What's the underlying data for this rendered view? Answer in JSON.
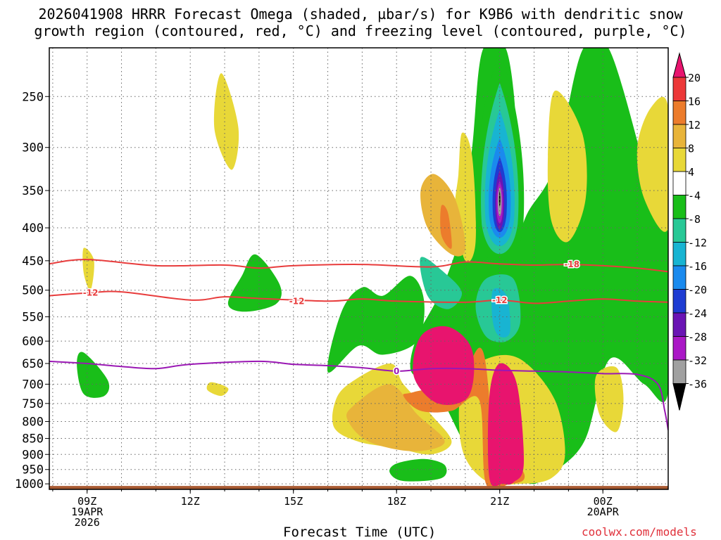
{
  "title_line1": "2026041908 HRRR Forecast Omega (shaded, µbar/s) for K9B6 with dendritic snow",
  "title_line2": "growth region (contoured, red, °C) and freezing level (contoured, purple, °C)",
  "xlabel": "Forecast Time (UTC)",
  "credit": "coolwx.com/models",
  "chart_data": {
    "type": "contour",
    "x_unit": "forecast hour (UTC)",
    "y_unit": "pressure (mb)",
    "xlim": [
      7.9,
      25.9
    ],
    "ylim": [
      1020,
      210
    ],
    "y_scale": "log",
    "grid": true,
    "y_ticks": [
      250,
      300,
      350,
      400,
      450,
      500,
      550,
      600,
      650,
      700,
      750,
      800,
      850,
      900,
      950,
      1000
    ],
    "x_ticks": [
      {
        "x": 9,
        "lines": [
          "09Z",
          "19APR",
          "2026"
        ]
      },
      {
        "x": 12,
        "lines": [
          "12Z"
        ]
      },
      {
        "x": 15,
        "lines": [
          "15Z"
        ]
      },
      {
        "x": 18,
        "lines": [
          "18Z"
        ]
      },
      {
        "x": 21,
        "lines": [
          "21Z"
        ]
      },
      {
        "x": 24,
        "lines": [
          "00Z",
          "20APR"
        ]
      }
    ],
    "colorbar": {
      "labels": [
        20,
        16,
        12,
        8,
        4,
        -4,
        -8,
        -12,
        -16,
        -20,
        -24,
        -28,
        -32,
        -36
      ],
      "colors": [
        "#e8146e",
        "#ec3838",
        "#ec7c2c",
        "#e8b43a",
        "#e8d838",
        "#ffffff",
        "#19be19",
        "#28c896",
        "#18b4d2",
        "#1a8aee",
        "#1e3cd2",
        "#6a14b4",
        "#aa18c6",
        "#a0a0a0",
        "#000000"
      ]
    },
    "ground_pressure": 1000,
    "contours": [
      {
        "label": "-18",
        "color": "#e83c3c",
        "x": [
          7.9,
          9,
          11,
          13,
          14,
          15,
          17,
          19,
          20,
          21,
          22,
          23,
          24,
          25,
          25.9
        ],
        "y": [
          455,
          448,
          458,
          457,
          462,
          458,
          456,
          460,
          452,
          455,
          457,
          456,
          458,
          462,
          468
        ]
      },
      {
        "label": "-12",
        "color": "#e83c3c",
        "x": [
          7.9,
          9,
          10,
          12,
          13,
          14,
          16,
          17,
          18,
          20,
          21,
          22,
          23,
          24,
          25,
          25.9
        ],
        "y": [
          510,
          505,
          503,
          518,
          512,
          515,
          520,
          516,
          520,
          522,
          518,
          524,
          520,
          516,
          520,
          522
        ]
      },
      {
        "label": "0",
        "color": "#9a18b4",
        "x": [
          7.9,
          9,
          10,
          11,
          12,
          14,
          15,
          16,
          17,
          18,
          19,
          20,
          21,
          22,
          23,
          24,
          25,
          25.6,
          25.8,
          25.9
        ],
        "y": [
          645,
          650,
          657,
          662,
          652,
          645,
          652,
          655,
          660,
          668,
          662,
          662,
          666,
          668,
          670,
          674,
          676,
          700,
          770,
          825
        ]
      }
    ],
    "shaded_regions": [
      {
        "color": "#19be19",
        "x": [
          20.5,
          21.2,
          21.5,
          21.3,
          21.8,
          22.6,
          23.4,
          24.2,
          25.4,
          25.9,
          25.9,
          25.2,
          24.2,
          23.5,
          22.7,
          22.2,
          21.9,
          21.4,
          20.6,
          20.0,
          19.2,
          18.7,
          18.4,
          18.6,
          19.3,
          19.9,
          20.2
        ],
        "y": [
          212,
          212,
          300,
          440,
          380,
          320,
          212,
          212,
          350,
          412,
          720,
          700,
          640,
          850,
          950,
          990,
          1000,
          980,
          950,
          870,
          720,
          690,
          660,
          590,
          500,
          400,
          300
        ]
      },
      {
        "color": "#19be19",
        "x": [
          17.6,
          18.4,
          18.8,
          18.6,
          17.6,
          16.9,
          16.0,
          16.4,
          17.0
        ],
        "y": [
          510,
          475,
          520,
          600,
          630,
          610,
          670,
          540,
          495
        ]
      },
      {
        "color": "#19be19",
        "x": [
          13.9,
          14.6,
          14.5,
          13.6,
          13.1,
          13.5
        ],
        "y": [
          440,
          490,
          525,
          540,
          525,
          475
        ]
      },
      {
        "color": "#19be19",
        "x": [
          8.9,
          9.6,
          9.5,
          8.9,
          8.7
        ],
        "y": [
          625,
          690,
          730,
          725,
          650
        ]
      },
      {
        "color": "#19be19",
        "x": [
          18.0,
          18.8,
          19.4,
          19.3,
          18.2,
          17.8
        ],
        "y": [
          930,
          915,
          935,
          980,
          990,
          960
        ]
      },
      {
        "color": "#e8d838",
        "x": [
          19.9,
          20.2,
          20.3,
          20.0,
          19.7,
          19.8
        ],
        "y": [
          285,
          310,
          420,
          450,
          380,
          330
        ]
      },
      {
        "color": "#e8d838",
        "x": [
          22.6,
          23.4,
          23.5,
          23.0,
          22.5,
          22.4
        ],
        "y": [
          245,
          285,
          360,
          420,
          390,
          310
        ]
      },
      {
        "color": "#e8d838",
        "x": [
          25.4,
          25.9,
          25.9,
          25.2,
          25.0
        ],
        "y": [
          260,
          260,
          400,
          360,
          300
        ]
      },
      {
        "color": "#e8d838",
        "x": [
          12.9,
          13.4,
          13.2,
          12.7
        ],
        "y": [
          230,
          280,
          325,
          280
        ]
      },
      {
        "color": "#e8d838",
        "x": [
          8.9,
          9.2,
          9.1,
          8.9
        ],
        "y": [
          430,
          450,
          500,
          470
        ]
      },
      {
        "color": "#e8d838",
        "x": [
          16.6,
          17.8,
          18.2,
          19.0,
          19.6,
          19.0,
          18.0,
          16.9,
          16.2,
          16.2
        ],
        "y": [
          700,
          650,
          700,
          780,
          860,
          900,
          880,
          860,
          820,
          750
        ]
      },
      {
        "color": "#e8d838",
        "x": [
          19.9,
          20.6,
          21.6,
          22.6,
          22.9,
          22.5,
          21.6,
          20.6,
          19.9
        ],
        "y": [
          700,
          640,
          640,
          740,
          900,
          980,
          1000,
          990,
          880
        ]
      },
      {
        "color": "#e8d838",
        "x": [
          23.8,
          24.4,
          24.6,
          24.4,
          23.9
        ],
        "y": [
          680,
          660,
          740,
          830,
          780
        ]
      },
      {
        "color": "#e8d838",
        "x": [
          12.6,
          13.1,
          12.9,
          12.5
        ],
        "y": [
          695,
          710,
          730,
          715
        ]
      },
      {
        "color": "#e8b43a",
        "x": [
          16.7,
          17.8,
          18.6,
          19.4,
          18.5,
          17.2,
          16.6
        ],
        "y": [
          760,
          700,
          780,
          860,
          890,
          860,
          800
        ]
      },
      {
        "color": "#e8b43a",
        "x": [
          19.1,
          19.7,
          20.0,
          19.6,
          18.9,
          18.7
        ],
        "y": [
          330,
          360,
          430,
          440,
          400,
          350
        ]
      },
      {
        "color": "#ec7c2c",
        "x": [
          19.3,
          19.5,
          19.6,
          19.3
        ],
        "y": [
          370,
          380,
          430,
          410
        ]
      },
      {
        "color": "#28c896",
        "x": [
          18.7,
          19.4,
          19.9,
          19.5,
          18.9
        ],
        "y": [
          445,
          470,
          505,
          535,
          510
        ]
      },
      {
        "color": "#28c896",
        "x": [
          20.6,
          21.4,
          21.6,
          21.2,
          20.6,
          20.3
        ],
        "y": [
          480,
          480,
          560,
          600,
          590,
          530
        ]
      },
      {
        "color": "#18b4d2",
        "x": [
          20.8,
          21.2,
          21.3,
          21.0,
          20.8
        ],
        "y": [
          500,
          510,
          580,
          590,
          560
        ]
      },
      {
        "color": "#ec7c2c",
        "x": [
          18.5,
          19.8,
          20.5,
          20.9,
          21.6,
          21.7,
          21.3,
          20.6,
          20.4,
          19.6,
          18.7,
          18.2
        ],
        "y": [
          720,
          690,
          620,
          900,
          945,
          985,
          1000,
          1000,
          740,
          770,
          770,
          730
        ]
      },
      {
        "color": "#e8146e",
        "x": [
          18.7,
          19.5,
          20.2,
          20.1,
          19.2,
          18.5
        ],
        "y": [
          590,
          570,
          620,
          730,
          750,
          680
        ]
      },
      {
        "color": "#e8146e",
        "x": [
          20.7,
          21.0,
          21.5,
          21.7,
          21.4,
          21.1,
          20.7
        ],
        "y": [
          730,
          650,
          700,
          930,
          995,
          1000,
          980
        ]
      }
    ],
    "omega_core": {
      "x": 21.0,
      "y": 360,
      "bands": [
        {
          "color": "#19be19",
          "dx": 0.75,
          "y0": 212,
          "y1": 475
        },
        {
          "color": "#28c896",
          "dx": 0.58,
          "y0": 238,
          "y1": 455
        },
        {
          "color": "#18b4d2",
          "dx": 0.46,
          "y0": 262,
          "y1": 440
        },
        {
          "color": "#1a8aee",
          "dx": 0.34,
          "y0": 290,
          "y1": 425
        },
        {
          "color": "#1e3cd2",
          "dx": 0.22,
          "y0": 310,
          "y1": 415
        },
        {
          "color": "#6a14b4",
          "dx": 0.14,
          "y0": 325,
          "y1": 410
        },
        {
          "color": "#aa18c6",
          "dx": 0.1,
          "y0": 338,
          "y1": 400
        },
        {
          "color": "#a0a0a0",
          "dx": 0.06,
          "y0": 345,
          "y1": 388
        },
        {
          "color": "#000000",
          "dx": 0.02,
          "y0": 350,
          "y1": 372
        }
      ]
    }
  }
}
